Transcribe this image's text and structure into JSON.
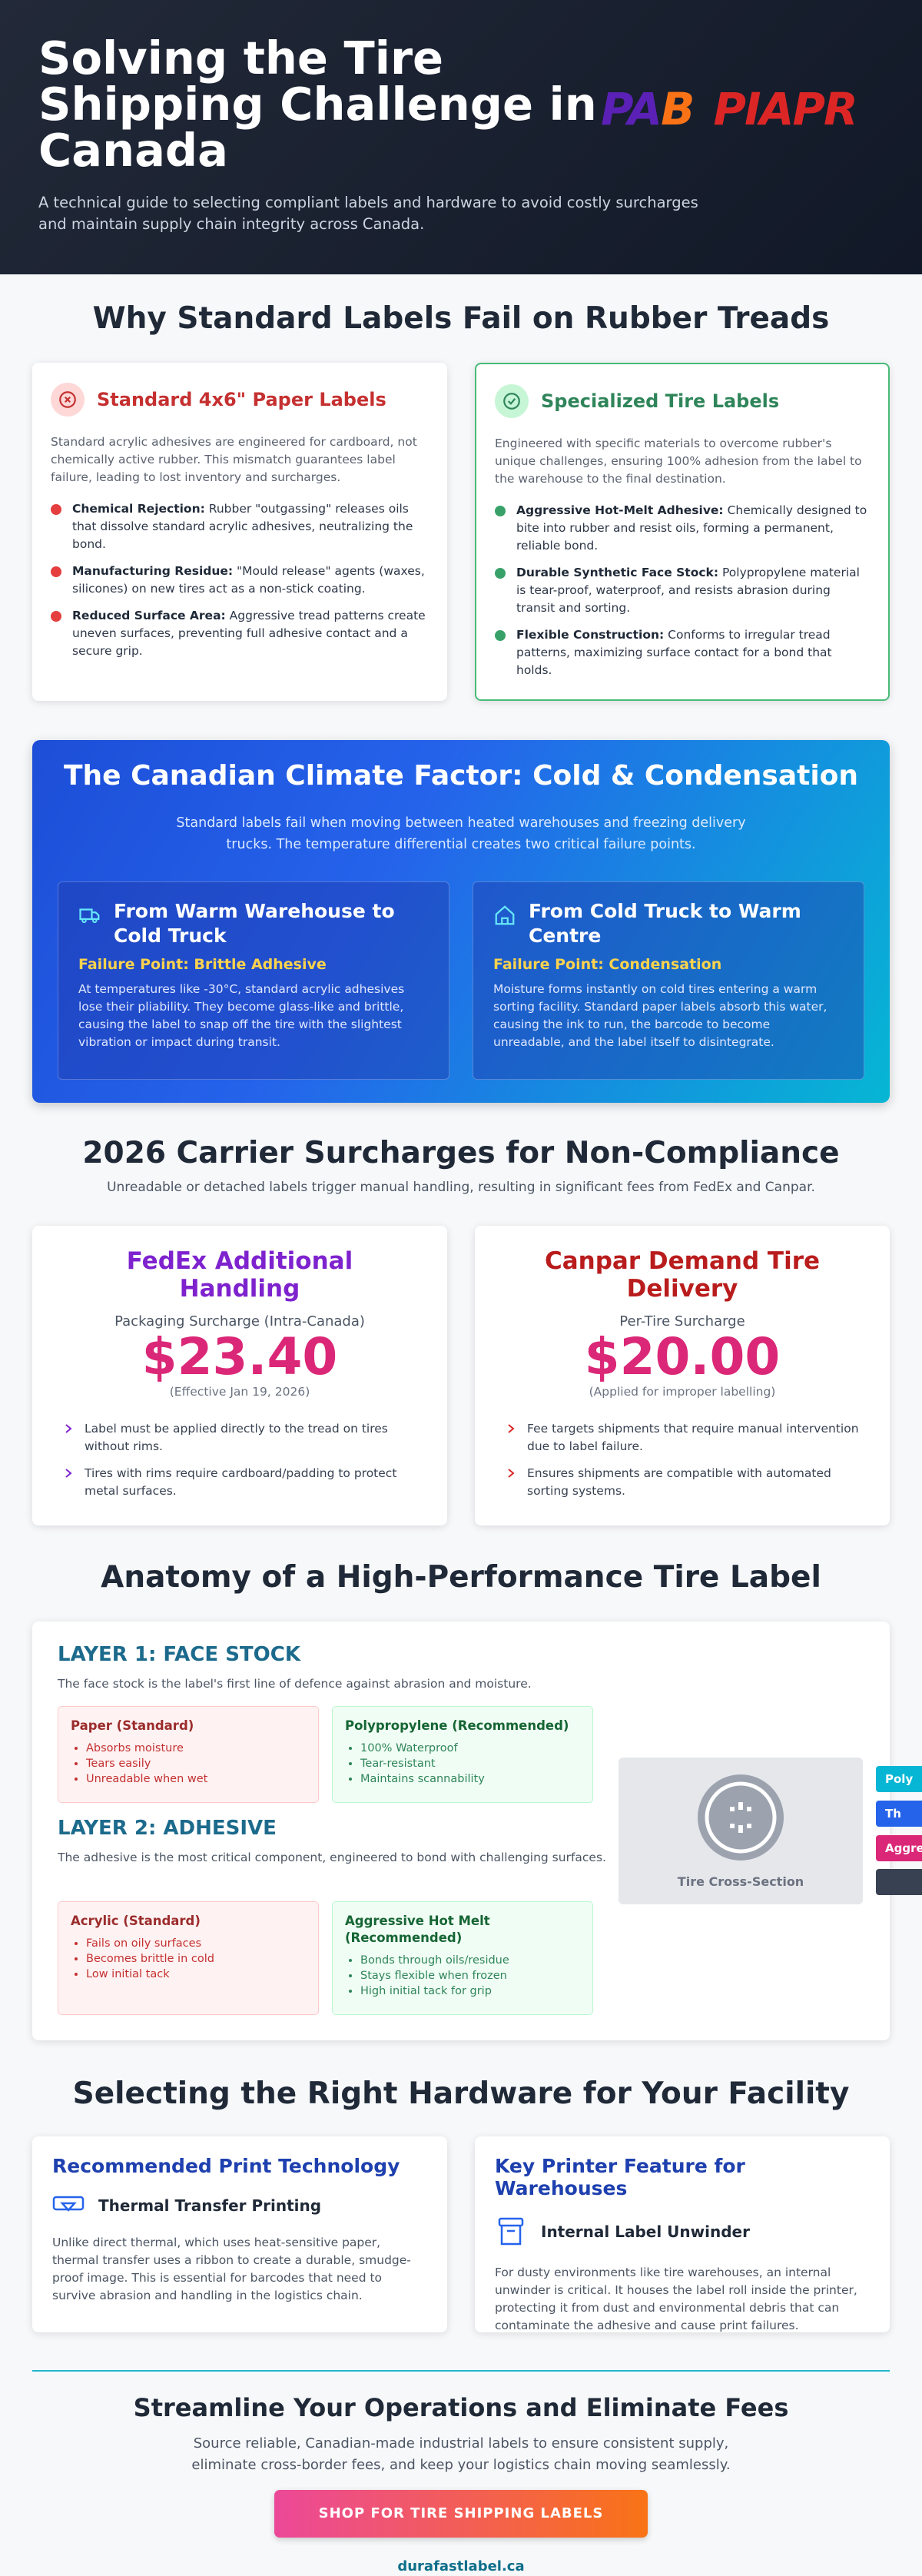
{
  "header": {
    "title": "Solving the Tire Shipping Challenge in Canada",
    "logo": [
      "PA",
      "B",
      "PIAPR"
    ],
    "subtitle": "A technical guide to selecting compliant labels and hardware to avoid costly surcharges and maintain supply chain integrity across Canada."
  },
  "why": {
    "title": "Why Standard Labels Fail on Rubber Treads",
    "cards": [
      {
        "title": "Standard 4x6\" Paper Labels",
        "intro": "Standard acrylic adhesives are engineered for cardboard, not chemically active rubber. This mismatch guarantees label failure, leading to lost inventory and surcharges.",
        "items": [
          {
            "term": "Chemical Rejection:",
            "text": "Rubber \"outgassing\" releases oils that dissolve standard acrylic adhesives, neutralizing the bond."
          },
          {
            "term": "Manufacturing Residue:",
            "text": "\"Mould release\" agents (waxes, silicones) on new tires act as a non-stick coating."
          },
          {
            "term": "Reduced Surface Area:",
            "text": "Aggressive tread patterns create uneven surfaces, preventing full adhesive contact and a secure grip."
          }
        ]
      },
      {
        "title": "Specialized Tire Labels",
        "intro": "Engineered with specific materials to overcome rubber's unique challenges, ensuring 100% adhesion from the label to the warehouse to the final destination.",
        "items": [
          {
            "term": "Aggressive Hot-Melt Adhesive:",
            "text": "Chemically designed to bite into rubber and resist oils, forming a permanent, reliable bond."
          },
          {
            "term": "Durable Synthetic Face Stock:",
            "text": "Polypropylene material is tear-proof, waterproof, and resists abrasion during transit and sorting."
          },
          {
            "term": "Flexible Construction:",
            "text": "Conforms to irregular tread patterns, maximizing surface contact for a bond that holds."
          }
        ]
      }
    ]
  },
  "climate": {
    "title": "The Canadian Climate Factor: Cold & Condensation",
    "subtitle": "Standard labels fail when moving between heated warehouses and freezing delivery trucks. The temperature differential creates two critical failure points.",
    "cards": [
      {
        "title": "From Warm Warehouse to Cold Truck",
        "failure": "Failure Point: Brittle Adhesive",
        "text": "At temperatures like -30°C, standard acrylic adhesives lose their pliability. They become glass-like and brittle, causing the label to snap off the tire with the slightest vibration or impact during transit."
      },
      {
        "title": "From Cold Truck to Warm Centre",
        "failure": "Failure Point: Condensation",
        "text": "Moisture forms instantly on cold tires entering a warm sorting facility. Standard paper labels absorb this water, causing the ink to run, the barcode to become unreadable, and the label itself to disintegrate."
      }
    ]
  },
  "surcharges": {
    "title": "2026 Carrier Surcharges for Non-Compliance",
    "subtitle": "Unreadable or detached labels trigger manual handling, resulting in significant fees from FedEx and Canpar.",
    "cards": [
      {
        "title": "FedEx Additional Handling",
        "label": "Packaging Surcharge (Intra-Canada)",
        "price": "$23.40",
        "note": "(Effective Jan 19, 2026)",
        "items": [
          "Label must be applied directly to the tread on tires without rims.",
          "Tires with rims require cardboard/padding to protect metal surfaces."
        ]
      },
      {
        "title": "Canpar Demand Tire Delivery",
        "label": "Per-Tire Surcharge",
        "price": "$20.00",
        "note": "(Applied for improper labelling)",
        "items": [
          "Fee targets shipments that require manual intervention due to label failure.",
          "Ensures shipments are compatible with automated sorting systems."
        ]
      }
    ]
  },
  "anatomy": {
    "title": "Anatomy of a High-Performance Tire Label",
    "layers": [
      {
        "title": "LAYER 1: FACE STOCK",
        "text": "The face stock is the label's first line of defence against abrasion and moisture.",
        "bad": {
          "title": "Paper (Standard)",
          "items": [
            "Absorbs moisture",
            "Tears easily",
            "Unreadable when wet"
          ]
        },
        "good": {
          "title": "Polypropylene (Recommended)",
          "items": [
            "100% Waterproof",
            "Tear-resistant",
            "Maintains scannability"
          ]
        }
      },
      {
        "title": "LAYER 2: ADHESIVE",
        "text": "The adhesive is the most critical component, engineered to bond with challenging surfaces.",
        "bad": {
          "title": "Acrylic (Standard)",
          "items": [
            "Fails on oily surfaces",
            "Becomes brittle in cold",
            "Low initial tack"
          ]
        },
        "good": {
          "title": "Aggressive Hot Melt (Recommended)",
          "items": [
            "Bonds through oils/residue",
            "Stays flexible when frozen",
            "High initial tack for grip"
          ]
        }
      }
    ],
    "diagram": {
      "label": "Tire Cross-Section",
      "tags": [
        "Poly",
        "Th",
        "Aggre"
      ]
    }
  },
  "hardware": {
    "title": "Selecting the Right Hardware for Your Facility",
    "cards": [
      {
        "title": "Recommended Print Technology",
        "subtitle": "Thermal Transfer Printing",
        "text": "Unlike direct thermal, which uses heat-sensitive paper, thermal transfer uses a ribbon to create a durable, smudge-proof image. This is essential for barcodes that need to survive abrasion and handling in the logistics chain."
      },
      {
        "title": "Key Printer Feature for Warehouses",
        "subtitle": "Internal Label Unwinder",
        "text": "For dusty environments like tire warehouses, an internal unwinder is critical. It houses the label roll inside the printer, protecting it from dust and environmental debris that can contaminate the adhesive and cause print failures."
      }
    ]
  },
  "cta": {
    "title": "Streamline Your Operations and Eliminate Fees",
    "text": "Source reliable, Canadian-made industrial labels to ensure consistent supply, eliminate cross-border fees, and keep your logistics chain moving seamlessly.",
    "button": "SHOP FOR TIRE SHIPPING LABELS",
    "link": "durafastlabel.ca"
  }
}
